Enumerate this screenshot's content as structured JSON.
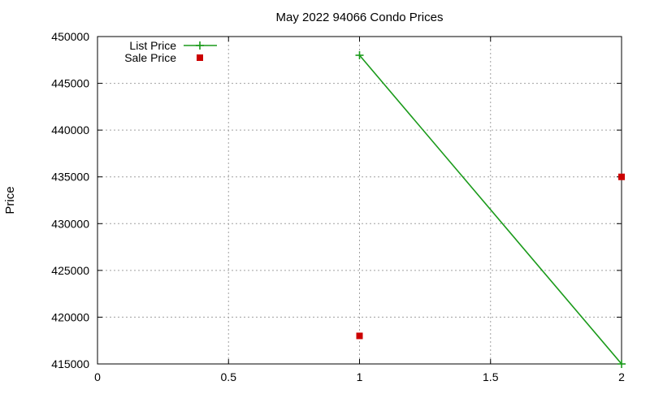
{
  "chart_data": {
    "type": "scatter",
    "title": "May 2022 94066 Condo Prices",
    "xlabel": "",
    "ylabel": "Price",
    "xlim": [
      0,
      2
    ],
    "ylim": [
      415000,
      450000
    ],
    "xticks": [
      "0",
      "0.5",
      "1",
      "1.5",
      "2"
    ],
    "xtick_values": [
      0,
      0.5,
      1,
      1.5,
      2
    ],
    "yticks": [
      "415000",
      "420000",
      "425000",
      "430000",
      "435000",
      "440000",
      "445000",
      "450000"
    ],
    "ytick_values": [
      415000,
      420000,
      425000,
      430000,
      435000,
      440000,
      445000,
      450000
    ],
    "grid": true,
    "legend_position": "top-left",
    "series": [
      {
        "name": "List Price",
        "style": "linespoints",
        "marker": "plus",
        "color": "#1a9a1a",
        "points": [
          {
            "x": 1,
            "y": 448000
          },
          {
            "x": 2,
            "y": 415000
          }
        ]
      },
      {
        "name": "Sale Price",
        "style": "points",
        "marker": "square",
        "color": "#cc0000",
        "points": [
          {
            "x": 1,
            "y": 418000
          },
          {
            "x": 2,
            "y": 435000
          }
        ]
      }
    ]
  }
}
